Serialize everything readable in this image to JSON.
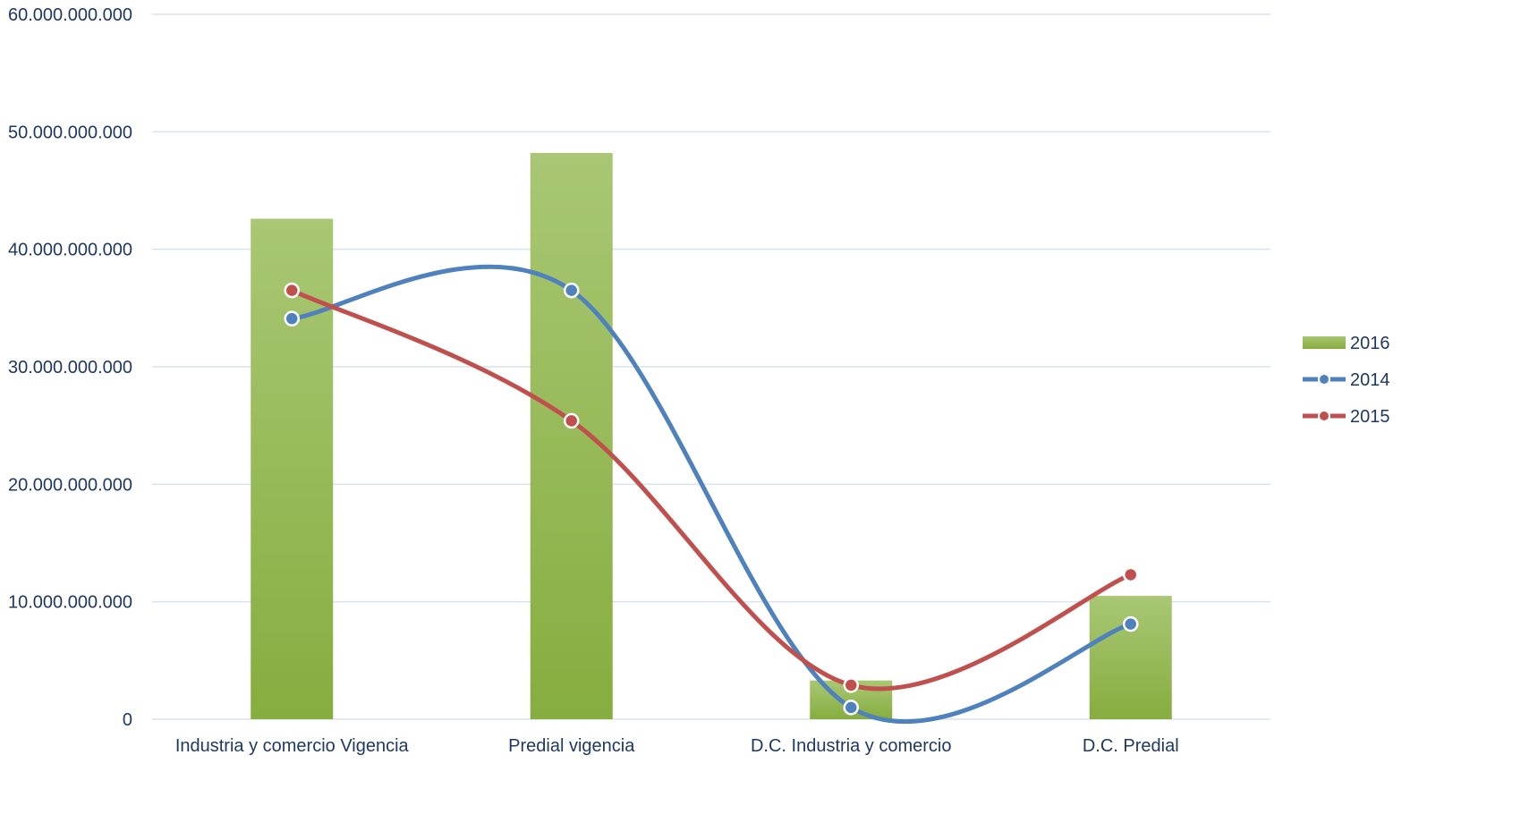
{
  "chart_data": {
    "type": "bar",
    "categories": [
      "Industria y comercio Vigencia",
      "Predial vigencia",
      "D.C. Industria y comercio",
      "D.C. Predial"
    ],
    "ylim": [
      0,
      60000000000
    ],
    "yticks": [
      0,
      10000000000,
      20000000000,
      30000000000,
      40000000000,
      50000000000,
      60000000000
    ],
    "ytick_labels": [
      "0",
      "10.000.000.000",
      "20.000.000.000",
      "30.000.000.000",
      "40.000.000.000",
      "50.000.000.000",
      "60.000.000.000"
    ],
    "grid": true,
    "legend_position": "right",
    "series": [
      {
        "name": "2016",
        "type": "bar",
        "color": "#9bbb59",
        "values": [
          42600000000,
          48200000000,
          3300000000,
          10500000000
        ]
      },
      {
        "name": "2014",
        "type": "line",
        "smooth": true,
        "color": "#4f81bd",
        "values": [
          34100000000,
          36500000000,
          1000000000,
          8100000000
        ]
      },
      {
        "name": "2015",
        "type": "line",
        "smooth": true,
        "color": "#c0504d",
        "values": [
          36500000000,
          25400000000,
          2900000000,
          12300000000
        ]
      }
    ]
  }
}
